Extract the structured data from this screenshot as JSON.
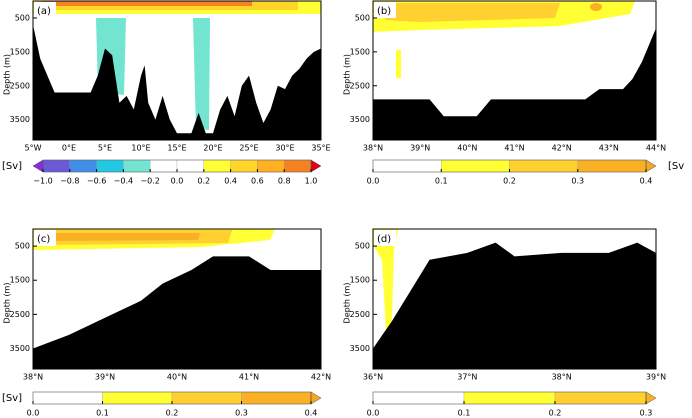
{
  "chart_data": [
    {
      "type": "section",
      "panel_label": "(a)",
      "ylabel": "Depth (m)",
      "x": [
        -5,
        -4.5,
        -4,
        -3,
        -2,
        0,
        3,
        4,
        5,
        6,
        7,
        8,
        9,
        10,
        10.5,
        11,
        12,
        13,
        14,
        15,
        17,
        18,
        19,
        20,
        21,
        22,
        23,
        24,
        25,
        26,
        27,
        28,
        29,
        30,
        31,
        32,
        33,
        34,
        35
      ],
      "values": [
        700,
        1200,
        1700,
        2200,
        2700,
        2700,
        2700,
        2200,
        1400,
        1600,
        3000,
        2800,
        3200,
        2200,
        1900,
        3000,
        3500,
        2800,
        3500,
        3900,
        3900,
        3300,
        3900,
        3900,
        3200,
        2800,
        3400,
        2500,
        2200,
        3000,
        3600,
        3200,
        2500,
        2600,
        2200,
        2000,
        1700,
        1500,
        1400
      ],
      "color": "#000000",
      "xlim": [
        -5,
        35
      ],
      "ylim": [
        0,
        4100
      ],
      "xticks": [
        {
          "value": -5,
          "label": "5°W"
        },
        {
          "value": 0,
          "label": "0°E"
        },
        {
          "value": 5,
          "label": "5°E"
        },
        {
          "value": 10,
          "label": "10°E"
        },
        {
          "value": 15,
          "label": "15°E"
        },
        {
          "value": 20,
          "label": "20°E"
        },
        {
          "value": 25,
          "label": "25°E"
        },
        {
          "value": 30,
          "label": "30°E"
        },
        {
          "value": 35,
          "label": "35°E"
        }
      ],
      "yticks": [
        500,
        1500,
        2500,
        3500
      ],
      "colorbar": {
        "label": "[Sv]",
        "extend": "both",
        "under": "#8a2be2",
        "over": "#e0001a",
        "ticks": [
          {
            "value": -1.0,
            "label": "−1.0"
          },
          {
            "value": -0.8,
            "label": "−0.8"
          },
          {
            "value": -0.6,
            "label": "−0.6"
          },
          {
            "value": -0.4,
            "label": "−0.4"
          },
          {
            "value": -0.2,
            "label": "−0.2"
          },
          {
            "value": 0,
            "label": "0.0"
          },
          {
            "value": 0.2,
            "label": "0.2"
          },
          {
            "value": 0.4,
            "label": "0.4"
          },
          {
            "value": 0.6,
            "label": "0.6"
          },
          {
            "value": 0.8,
            "label": "0.8"
          },
          {
            "value": 1.0,
            "label": "1.0"
          }
        ],
        "colors": [
          "#6a5ad8",
          "#3f8fe8",
          "#22c8e4",
          "#72e4d0",
          "#ffffff",
          "#ffffff",
          "#ffff33",
          "#ffd52a",
          "#ffb020",
          "#f58220"
        ]
      }
    },
    {
      "type": "section",
      "panel_label": "(b)",
      "ylabel": "Depth (m)",
      "x": [
        38,
        39.2,
        39.5,
        40.2,
        40.5,
        42.5,
        42.8,
        43.3,
        43.5,
        43.7,
        43.85,
        44
      ],
      "values": [
        2900,
        2900,
        3400,
        3400,
        2900,
        2900,
        2600,
        2600,
        2300,
        1800,
        1300,
        800
      ],
      "color": "#000000",
      "xlim": [
        38,
        44
      ],
      "ylim": [
        0,
        4100
      ],
      "xticks": [
        {
          "value": 38,
          "label": "38°N"
        },
        {
          "value": 39,
          "label": "39°N"
        },
        {
          "value": 40,
          "label": "40°N"
        },
        {
          "value": 41,
          "label": "41°N"
        },
        {
          "value": 42,
          "label": "42°N"
        },
        {
          "value": 43,
          "label": "43°N"
        },
        {
          "value": 44,
          "label": "44°N"
        }
      ],
      "yticks": [
        500,
        1500,
        2500,
        3500
      ],
      "colorbar": {
        "label": "[Sv",
        "extend": "max",
        "over": "#f5a623",
        "ticks": [
          {
            "value": 0,
            "label": "0.0"
          },
          0.1,
          0.2,
          0.3,
          0.4
        ],
        "colors": [
          "#ffffff",
          "#ffff33",
          "#ffd030",
          "#f9b025"
        ]
      }
    },
    {
      "type": "section",
      "panel_label": "(c)",
      "ylabel": "Depth (m)",
      "x": [
        38,
        38.5,
        39,
        39.5,
        39.8,
        40.2,
        40.5,
        41,
        41.3,
        42
      ],
      "values": [
        3500,
        3100,
        2600,
        2100,
        1600,
        1200,
        800,
        800,
        1200,
        1200
      ],
      "color": "#000000",
      "xlim": [
        38,
        42
      ],
      "ylim": [
        0,
        4100
      ],
      "xticks": [
        {
          "value": 38,
          "label": "38°N"
        },
        {
          "value": 39,
          "label": "39°N"
        },
        {
          "value": 40,
          "label": "40°N"
        },
        {
          "value": 41,
          "label": "41°N"
        },
        {
          "value": 42,
          "label": "42°N"
        }
      ],
      "yticks": [
        500,
        1500,
        2500,
        3500
      ],
      "colorbar": {
        "label": "[Sv]",
        "extend": "max",
        "over": "#f5a623",
        "ticks": [
          {
            "value": 0,
            "label": "0.0"
          },
          0.1,
          0.2,
          0.3,
          0.4
        ],
        "colors": [
          "#ffffff",
          "#ffff33",
          "#ffd030",
          "#f9b025"
        ]
      }
    },
    {
      "type": "section",
      "panel_label": "(d)",
      "ylabel": "Depth (m)",
      "x": [
        36,
        36.2,
        36.4,
        36.6,
        37,
        37.3,
        37.5,
        38,
        38.5,
        38.8,
        39
      ],
      "values": [
        3500,
        2700,
        1800,
        900,
        700,
        400,
        800,
        700,
        700,
        400,
        700
      ],
      "color": "#000000",
      "xlim": [
        36,
        39
      ],
      "ylim": [
        0,
        4100
      ],
      "xticks": [
        {
          "value": 36,
          "label": "36°N"
        },
        {
          "value": 37,
          "label": "37°N"
        },
        {
          "value": 38,
          "label": "38°N"
        },
        {
          "value": 39,
          "label": "39°N"
        }
      ],
      "yticks": [
        500,
        1500,
        2500,
        3500
      ],
      "colorbar": {
        "extend": "max",
        "over": "#f9b025",
        "ticks": [
          {
            "value": 0,
            "label": "0.0"
          },
          0.1,
          0.2,
          0.3
        ],
        "colors": [
          "#ffffff",
          "#ffff33",
          "#ffd030"
        ]
      }
    }
  ]
}
